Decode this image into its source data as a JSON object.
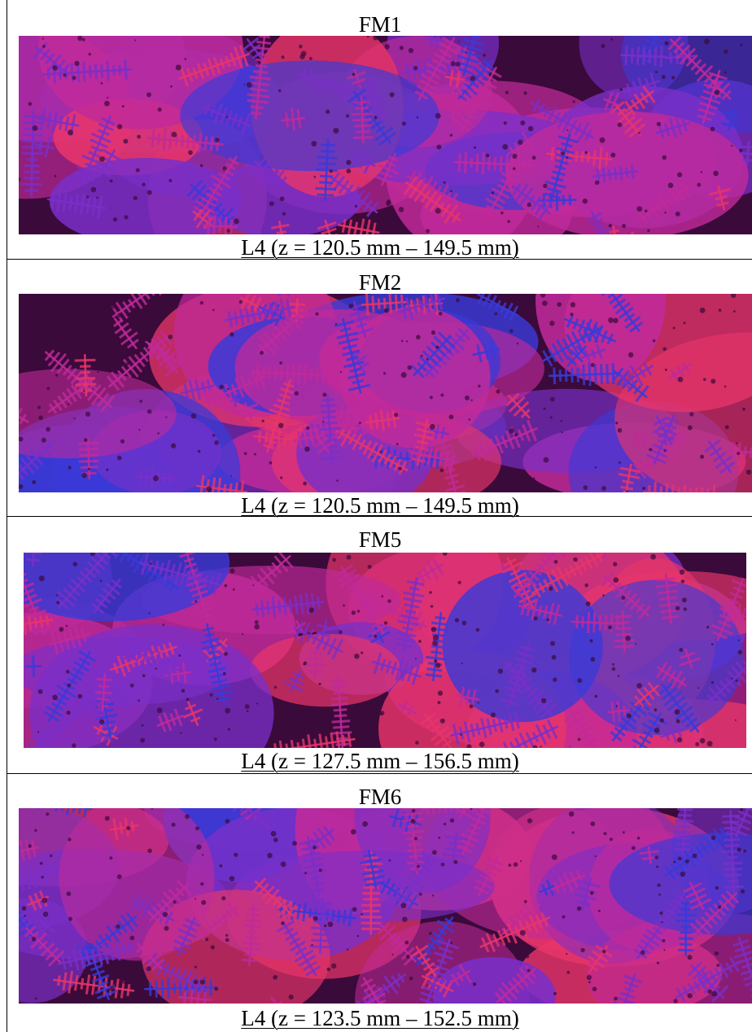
{
  "panels": [
    {
      "title": "FM1",
      "caption": "L4 (z = 120.5 mm – 149.5 mm)",
      "image": "dendritic-microstructure-micrograph"
    },
    {
      "title": "FM2",
      "caption": "L4 (z = 120.5 mm – 149.5 mm)",
      "image": "dendritic-microstructure-micrograph"
    },
    {
      "title": "FM5",
      "caption": "L4 (z = 127.5 mm – 156.5 mm)",
      "image": "dendritic-microstructure-micrograph"
    },
    {
      "title": "FM6",
      "caption": "L4 (z = 123.5 mm – 152.5 mm)",
      "image": "dendritic-microstructure-micrograph"
    }
  ],
  "colors": {
    "grain_red": "#e8356a",
    "grain_magenta": "#c02a9a",
    "grain_purple": "#7a2fc8",
    "grain_blue": "#3a3ad8",
    "interdendritic_dark": "#3a0a3a"
  }
}
